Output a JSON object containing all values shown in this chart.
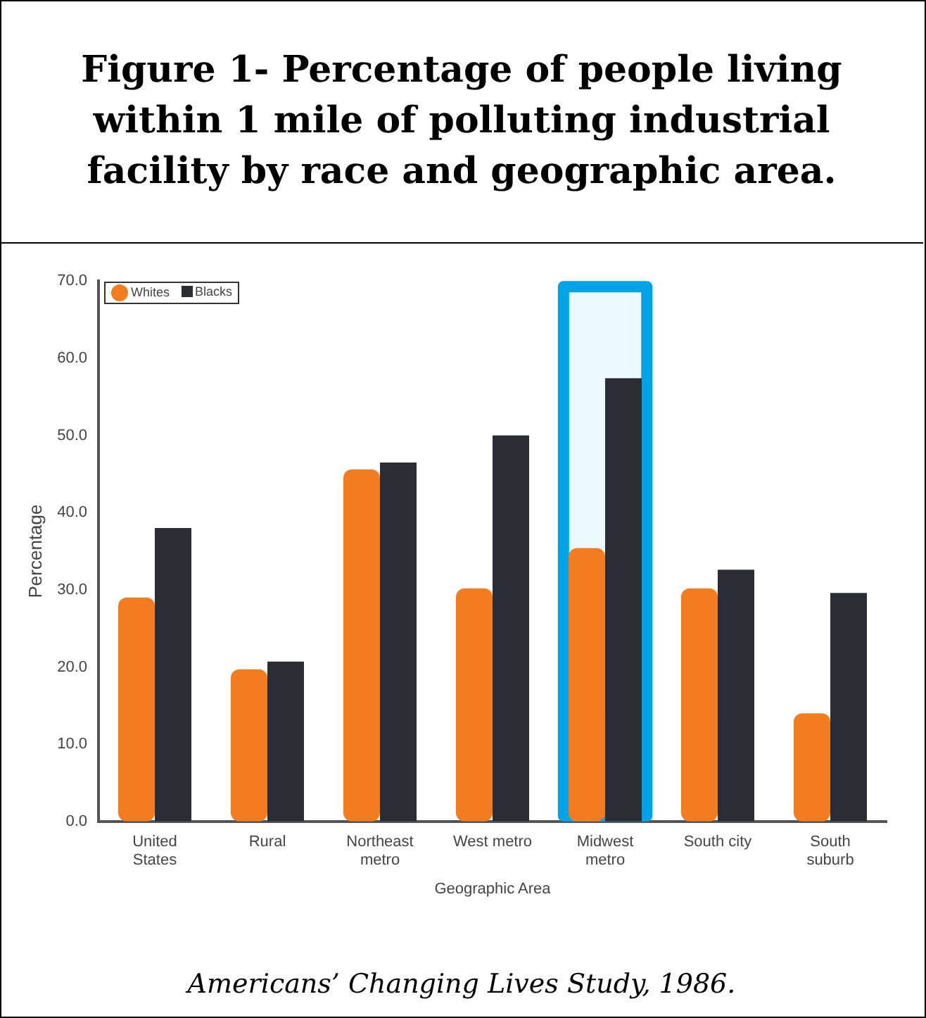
{
  "chart_data": {
    "type": "bar",
    "title": "Figure 1- Percentage of people living within 1 mile of polluting industrial facility by race and geographic area.",
    "xlabel": "Geographic Area",
    "ylabel": "Percentage",
    "categories": [
      "United States",
      "Rural",
      "Northeast metro",
      "West metro",
      "Midwest metro",
      "South city",
      "South suburb"
    ],
    "series": [
      {
        "name": "Whites",
        "color": "#f47c20",
        "values": [
          29.0,
          19.7,
          45.6,
          30.2,
          35.4,
          30.2,
          14.0
        ]
      },
      {
        "name": "Blacks",
        "color": "#2a2d34",
        "values": [
          38.0,
          20.7,
          46.5,
          50.0,
          57.4,
          32.6,
          29.6
        ]
      }
    ],
    "ylim": [
      0,
      70
    ],
    "yticks": [
      {
        "value": 0,
        "label": "0.0"
      },
      {
        "value": 10,
        "label": "10.0"
      },
      {
        "value": 20,
        "label": "20.0"
      },
      {
        "value": 30,
        "label": "30.0"
      },
      {
        "value": 40,
        "label": "40.0"
      },
      {
        "value": 50,
        "label": "50.0"
      },
      {
        "value": 60,
        "label": "60.0"
      },
      {
        "value": 70,
        "label": "70.0"
      }
    ],
    "grid": false,
    "legend": "top left",
    "bands": [
      {
        "axis": "x",
        "from": "Midwest metro",
        "to": "Midwest metro",
        "color": "#00a2e8"
      }
    ],
    "annotations": [
      "Americans’ Changing Lives Study, 1986."
    ]
  }
}
